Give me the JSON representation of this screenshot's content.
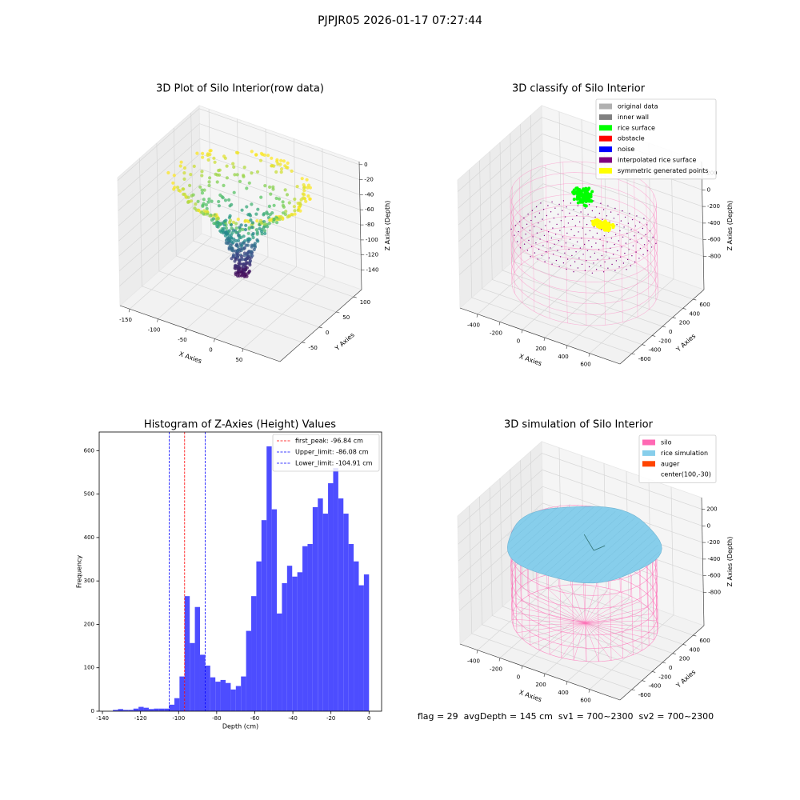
{
  "title": "PJPJR05 2026-01-17 07:27:44",
  "footer": "flag = 29  avgDepth = 145 cm  sv1 = 700~2300  sv2 = 700~2300",
  "chart_data": [
    {
      "type": "scatter3d",
      "title": "3D Plot of Silo Interior(row data)",
      "xlabel": "X Axies",
      "ylabel": "Y Axies",
      "zlabel": "Z Axies (Depth)",
      "xlim": [
        -167,
        115
      ],
      "ylim": [
        -114,
        124
      ],
      "zlim": [
        -166,
        4
      ],
      "xticks": [
        -150,
        -100,
        -50,
        0,
        50
      ],
      "yticks": [
        -50,
        0,
        50,
        100
      ],
      "zticks": [
        -140,
        -120,
        -100,
        -80,
        -60,
        -40,
        -20,
        0
      ],
      "colormap": "viridis"
    },
    {
      "type": "scatter3d",
      "title": "3D classify of Silo Interior",
      "xlabel": "X Axies",
      "ylabel": "Y Axies",
      "zlabel": "Z Axies (Depth)",
      "xlim": [
        -557,
        871
      ],
      "ylim": [
        -830,
        814
      ],
      "zlim": [
        -1200,
        340
      ],
      "xticks": [
        -400,
        -200,
        0,
        200,
        400,
        600
      ],
      "yticks": [
        -600,
        -400,
        -200,
        0,
        200,
        400,
        600
      ],
      "zticks": [
        -800,
        -600,
        -400,
        -200,
        0,
        200
      ],
      "legend": {
        "loc": "upper right",
        "entries": [
          {
            "name": "original data",
            "color": "#b0b0b0"
          },
          {
            "name": "inner wall",
            "color": "#808080"
          },
          {
            "name": "rice surface",
            "color": "#00ff00"
          },
          {
            "name": "obstacle",
            "color": "#ff0000"
          },
          {
            "name": "noise",
            "color": "#0000ff"
          },
          {
            "name": "interpolated rice surface",
            "color": "#800080"
          },
          {
            "name": "symmetric generated points",
            "color": "#ffff00"
          }
        ]
      }
    },
    {
      "type": "histogram",
      "title": "Histogram of Z-Axies (Height) Values",
      "xlabel": "Depth (cm)",
      "ylabel": "Frequency",
      "color": "#4d4dff",
      "bins": [
        -134.5,
        -131.81,
        -129.12,
        -126.43,
        -123.74,
        -121.05,
        -118.36,
        -115.67,
        -112.98,
        -110.29,
        -107.6,
        -104.91,
        -102.22,
        -99.53,
        -96.84,
        -94.15,
        -91.46,
        -88.77,
        -86.08,
        -83.39,
        -80.7,
        -78.01,
        -75.32,
        -72.63,
        -69.94,
        -67.25,
        -64.56,
        -61.87,
        -59.18,
        -56.49,
        -53.8,
        -51.11,
        -48.42,
        -45.73,
        -43.04,
        -40.35,
        -37.66,
        -34.97,
        -32.28,
        -29.59,
        -26.9,
        -24.21,
        -21.52,
        -18.83,
        -16.14,
        -13.45,
        -10.76,
        -8.07,
        -5.38,
        -2.69,
        0
      ],
      "counts": [
        3,
        5,
        3,
        3,
        6,
        10,
        8,
        5,
        6,
        6,
        6,
        15,
        30,
        80,
        265,
        157,
        240,
        130,
        105,
        78,
        68,
        72,
        65,
        50,
        58,
        80,
        185,
        265,
        345,
        440,
        610,
        465,
        225,
        295,
        335,
        310,
        320,
        380,
        385,
        470,
        490,
        455,
        525,
        560,
        490,
        455,
        385,
        345,
        290,
        315
      ],
      "xlim": [
        -141.7,
        6.6
      ],
      "ylim": [
        0,
        643
      ],
      "xticks": [
        -140,
        -120,
        -100,
        -80,
        -60,
        -40,
        -20,
        0
      ],
      "yticks": [
        0,
        100,
        200,
        300,
        400,
        500,
        600
      ],
      "vlines": [
        {
          "name": "first_peak: -96.84 cm",
          "x": -96.84,
          "color": "#ff0000"
        },
        {
          "name": "Upper_limit: -86.08 cm",
          "x": -86.08,
          "color": "#0000ff"
        },
        {
          "name": "Lower_limit: -104.91 cm",
          "x": -104.91,
          "color": "#0000ff"
        }
      ],
      "legend_loc": "upper right"
    },
    {
      "type": "surface3d",
      "title": "3D simulation of Silo Interior",
      "xlabel": "X Axies",
      "ylabel": "Y Axies",
      "zlabel": "Z Axies (Depth)",
      "xlim": [
        -557,
        871
      ],
      "ylim": [
        -830,
        814
      ],
      "zlim": [
        -1200,
        340
      ],
      "xticks": [
        -400,
        -200,
        0,
        200,
        400,
        600
      ],
      "yticks": [
        -600,
        -400,
        -200,
        0,
        200,
        400,
        600
      ],
      "zticks": [
        -800,
        -600,
        -400,
        -200,
        0,
        200
      ],
      "legend": {
        "loc": "upper right",
        "entries": [
          {
            "name": "silo",
            "color": "#ff69b4"
          },
          {
            "name": "rice simulation",
            "color": "#87ceeb"
          },
          {
            "name": "auger",
            "color": "#ff4500"
          },
          {
            "name": "center(100,-30)",
            "color": null
          }
        ]
      }
    }
  ]
}
